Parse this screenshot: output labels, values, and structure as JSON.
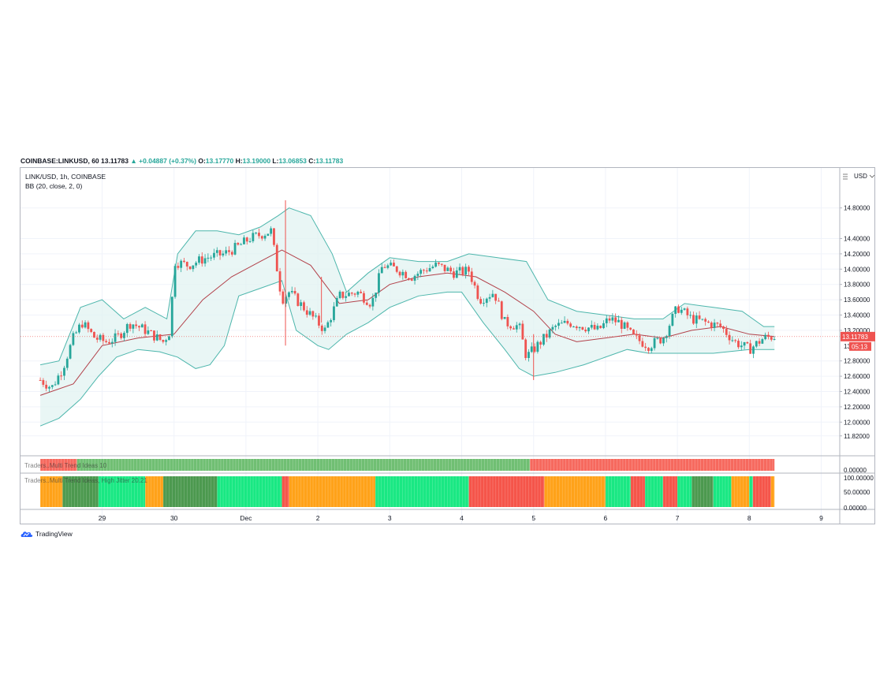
{
  "header": {
    "symbol": "COINBASE:LINKUSD, 60",
    "last": "13.11783",
    "change": "▲ +0.04887 (+0.37%)",
    "o_label": "O:",
    "o_val": "13.17770",
    "h_label": "H:",
    "h_val": "13.19000",
    "l_label": "L:",
    "l_val": "13.06853",
    "c_label": "C:",
    "c_val": "13.11783"
  },
  "legend": {
    "series_title": "LINK/USD, 1h, COINBASE",
    "bb_title": "BB (20, close, 2, 0)",
    "ind1": "Traders..Multi Trend Ideas  10",
    "ind2": "Traders..Multi Trend Ideas, High Jitter  20.21"
  },
  "price_axis": {
    "currency_label": "USD",
    "current_price_tag": "13.11783",
    "countdown_tag": "05:13",
    "hidden_tick": "13"
  },
  "brand": {
    "name": "TradingView"
  },
  "colors": {
    "up": "#26a69a",
    "down": "#ef5350",
    "bb_band": "#4db6ac",
    "bb_fill": "#e0f2f1",
    "bb_basis": "#b2414a",
    "ind_green": "#4caf50",
    "ind_red": "#f44336",
    "ind_orange": "#ff9800",
    "ind_mint": "#00e676",
    "ind_dkgreen": "#388e3c"
  },
  "chart_data": {
    "type": "candlestick",
    "title": "LINK/USD, 1h, COINBASE",
    "ylim": [
      11.7,
      15.0
    ],
    "yticks": [
      "14.80000",
      "14.40000",
      "14.20000",
      "14.00000",
      "13.80000",
      "13.60000",
      "13.40000",
      "13.20000",
      "12.80000",
      "12.60000",
      "12.40000",
      "12.20000",
      "12.00000",
      "11.82000"
    ],
    "ytick_values": [
      14.8,
      14.4,
      14.2,
      14.0,
      13.8,
      13.6,
      13.4,
      13.2,
      12.8,
      12.6,
      12.4,
      12.2,
      12.0,
      11.82
    ],
    "xticks": [
      "29",
      "30",
      "Dec",
      "2",
      "3",
      "4",
      "5",
      "6",
      "7",
      "8",
      "9"
    ],
    "xtick_days": [
      1,
      2,
      3,
      4,
      5,
      6,
      7,
      8,
      9,
      10,
      11
    ],
    "x_start_day": 0.14,
    "x_end_day": 11.9,
    "close_path": [
      [
        0.14,
        12.55
      ],
      [
        0.3,
        12.45
      ],
      [
        0.45,
        12.7
      ],
      [
        0.6,
        13.1
      ],
      [
        0.72,
        13.3
      ],
      [
        0.9,
        13.1
      ],
      [
        1.05,
        13.05
      ],
      [
        1.2,
        13.1
      ],
      [
        1.4,
        13.3
      ],
      [
        1.6,
        13.2
      ],
      [
        1.85,
        13.05
      ],
      [
        1.95,
        13.2
      ],
      [
        2.0,
        14.1
      ],
      [
        2.2,
        14.05
      ],
      [
        2.45,
        14.15
      ],
      [
        2.7,
        14.2
      ],
      [
        2.9,
        14.3
      ],
      [
        3.05,
        14.4
      ],
      [
        3.35,
        14.5
      ],
      [
        3.5,
        13.6
      ],
      [
        3.6,
        13.7
      ],
      [
        3.8,
        13.5
      ],
      [
        4.0,
        13.3
      ],
      [
        4.1,
        13.2
      ],
      [
        4.3,
        13.65
      ],
      [
        4.55,
        13.7
      ],
      [
        4.75,
        13.55
      ],
      [
        4.9,
        14.05
      ],
      [
        5.1,
        14.0
      ],
      [
        5.3,
        13.9
      ],
      [
        5.5,
        14.0
      ],
      [
        5.65,
        14.05
      ],
      [
        5.9,
        13.95
      ],
      [
        6.1,
        13.98
      ],
      [
        6.25,
        13.6
      ],
      [
        6.45,
        13.7
      ],
      [
        6.6,
        13.3
      ],
      [
        6.8,
        13.25
      ],
      [
        6.9,
        12.85
      ],
      [
        7.1,
        13.05
      ],
      [
        7.3,
        13.25
      ],
      [
        7.5,
        13.3
      ],
      [
        7.7,
        13.25
      ],
      [
        7.9,
        13.2
      ],
      [
        8.05,
        13.35
      ],
      [
        8.2,
        13.3
      ],
      [
        8.4,
        13.1
      ],
      [
        8.6,
        13.0
      ],
      [
        8.8,
        13.1
      ],
      [
        9.0,
        13.5
      ],
      [
        9.2,
        13.35
      ],
      [
        9.4,
        13.3
      ],
      [
        9.6,
        13.25
      ],
      [
        9.8,
        13.05
      ],
      [
        10.0,
        12.95
      ],
      [
        10.2,
        13.1
      ],
      [
        10.35,
        13.12
      ]
    ],
    "bb_upper_path": [
      [
        0.14,
        12.75
      ],
      [
        0.4,
        12.8
      ],
      [
        0.7,
        13.5
      ],
      [
        1.0,
        13.6
      ],
      [
        1.3,
        13.35
      ],
      [
        1.6,
        13.5
      ],
      [
        1.9,
        13.35
      ],
      [
        2.05,
        14.2
      ],
      [
        2.3,
        14.5
      ],
      [
        2.6,
        14.5
      ],
      [
        2.9,
        14.45
      ],
      [
        3.2,
        14.55
      ],
      [
        3.45,
        14.7
      ],
      [
        3.6,
        14.8
      ],
      [
        3.9,
        14.7
      ],
      [
        4.2,
        14.2
      ],
      [
        4.4,
        13.7
      ],
      [
        4.7,
        13.95
      ],
      [
        5.0,
        14.15
      ],
      [
        5.4,
        14.1
      ],
      [
        5.8,
        14.1
      ],
      [
        6.1,
        14.2
      ],
      [
        6.5,
        14.15
      ],
      [
        6.9,
        14.1
      ],
      [
        7.2,
        13.6
      ],
      [
        7.6,
        13.45
      ],
      [
        8.0,
        13.4
      ],
      [
        8.4,
        13.35
      ],
      [
        8.8,
        13.35
      ],
      [
        9.1,
        13.55
      ],
      [
        9.5,
        13.5
      ],
      [
        9.9,
        13.45
      ],
      [
        10.2,
        13.25
      ],
      [
        10.35,
        13.25
      ]
    ],
    "bb_lower_path": [
      [
        0.14,
        11.95
      ],
      [
        0.4,
        12.05
      ],
      [
        0.7,
        12.3
      ],
      [
        0.95,
        12.6
      ],
      [
        1.2,
        12.85
      ],
      [
        1.5,
        12.95
      ],
      [
        1.8,
        12.92
      ],
      [
        2.05,
        12.85
      ],
      [
        2.3,
        12.7
      ],
      [
        2.5,
        12.75
      ],
      [
        2.7,
        13.0
      ],
      [
        2.9,
        13.65
      ],
      [
        3.2,
        13.75
      ],
      [
        3.5,
        13.85
      ],
      [
        3.7,
        13.2
      ],
      [
        4.0,
        13.0
      ],
      [
        4.15,
        12.95
      ],
      [
        4.4,
        13.15
      ],
      [
        4.7,
        13.3
      ],
      [
        5.0,
        13.5
      ],
      [
        5.4,
        13.65
      ],
      [
        5.8,
        13.7
      ],
      [
        6.0,
        13.7
      ],
      [
        6.3,
        13.3
      ],
      [
        6.6,
        12.95
      ],
      [
        6.8,
        12.7
      ],
      [
        7.0,
        12.6
      ],
      [
        7.3,
        12.65
      ],
      [
        7.7,
        12.75
      ],
      [
        8.0,
        12.85
      ],
      [
        8.3,
        12.95
      ],
      [
        8.6,
        12.9
      ],
      [
        9.0,
        12.9
      ],
      [
        9.5,
        12.9
      ],
      [
        10.0,
        12.95
      ],
      [
        10.35,
        12.95
      ]
    ],
    "bb_basis_path": [
      [
        0.14,
        12.35
      ],
      [
        0.6,
        12.5
      ],
      [
        1.0,
        13.0
      ],
      [
        1.5,
        13.1
      ],
      [
        2.0,
        13.15
      ],
      [
        2.4,
        13.6
      ],
      [
        2.8,
        13.9
      ],
      [
        3.2,
        14.1
      ],
      [
        3.5,
        14.25
      ],
      [
        3.9,
        14.05
      ],
      [
        4.3,
        13.55
      ],
      [
        4.7,
        13.6
      ],
      [
        5.0,
        13.8
      ],
      [
        5.4,
        13.9
      ],
      [
        5.8,
        13.95
      ],
      [
        6.2,
        13.9
      ],
      [
        6.6,
        13.7
      ],
      [
        7.0,
        13.45
      ],
      [
        7.3,
        13.15
      ],
      [
        7.6,
        13.05
      ],
      [
        8.0,
        13.1
      ],
      [
        8.4,
        13.15
      ],
      [
        8.8,
        13.1
      ],
      [
        9.2,
        13.2
      ],
      [
        9.6,
        13.25
      ],
      [
        10.0,
        13.15
      ],
      [
        10.35,
        13.12
      ]
    ],
    "spikes": [
      [
        3.55,
        13.0,
        14.9
      ],
      [
        7.0,
        12.55,
        13.15
      ],
      [
        4.05,
        13.3,
        13.9
      ]
    ],
    "indicator1_segments": [
      [
        0.14,
        0.65,
        "ind_red"
      ],
      [
        0.65,
        6.95,
        "ind_green"
      ],
      [
        6.95,
        10.35,
        "ind_red"
      ]
    ],
    "indicator2_segments": [
      [
        0.14,
        0.45,
        "ind_orange"
      ],
      [
        0.45,
        0.95,
        "ind_dkgreen"
      ],
      [
        0.95,
        1.6,
        "ind_mint"
      ],
      [
        1.6,
        1.85,
        "ind_orange"
      ],
      [
        1.85,
        2.6,
        "ind_dkgreen"
      ],
      [
        2.6,
        3.5,
        "ind_mint"
      ],
      [
        3.5,
        3.6,
        "ind_red"
      ],
      [
        3.6,
        4.8,
        "ind_orange"
      ],
      [
        4.8,
        6.1,
        "ind_mint"
      ],
      [
        6.1,
        7.15,
        "ind_red"
      ],
      [
        7.15,
        8.0,
        "ind_orange"
      ],
      [
        8.0,
        8.35,
        "ind_mint"
      ],
      [
        8.35,
        8.55,
        "ind_red"
      ],
      [
        8.55,
        8.8,
        "ind_mint"
      ],
      [
        8.8,
        9.0,
        "ind_red"
      ],
      [
        9.0,
        9.2,
        "ind_mint"
      ],
      [
        9.2,
        9.5,
        "ind_dkgreen"
      ],
      [
        9.5,
        9.75,
        "ind_mint"
      ],
      [
        9.75,
        10.0,
        "ind_orange"
      ],
      [
        10.0,
        10.05,
        "ind_mint"
      ],
      [
        10.05,
        10.3,
        "ind_red"
      ],
      [
        10.3,
        10.35,
        "ind_orange"
      ]
    ],
    "indicator2_yticks": [
      "100.00000",
      "50.00000",
      "0.00000"
    ],
    "indicator1_ytick": "0.00000"
  }
}
